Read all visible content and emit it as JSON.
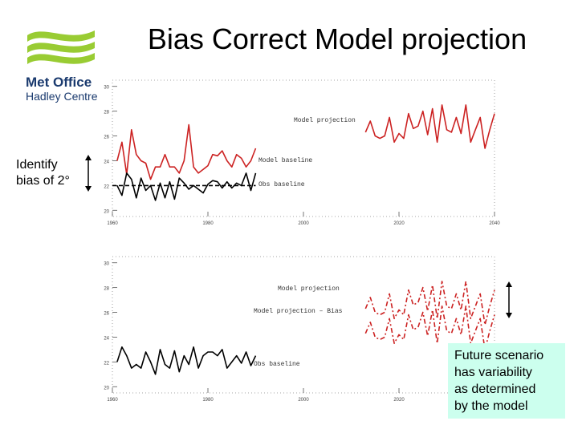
{
  "title": "Bias Correct Model projection",
  "logo": {
    "line1": "Met Office",
    "line2": "Hadley Centre",
    "color": "#99cc33",
    "text_color": "#1a3a6e"
  },
  "bias_note": {
    "line1": "Identify",
    "line2": "bias of 2°"
  },
  "future_note": {
    "lines": [
      "Future scenario",
      "has variability",
      "as determined",
      "by the model"
    ],
    "bg": "#ccffee"
  },
  "chart_data": [
    {
      "type": "line",
      "xlim": [
        1960,
        2040
      ],
      "ylim": [
        19.5,
        30.5
      ],
      "x_ticks": [
        1960,
        1980,
        2000,
        2020,
        2040
      ],
      "y_ticks": [
        20,
        22,
        24,
        26,
        28,
        30
      ],
      "annotations": [
        "Model projection",
        "Model baseline",
        "Obs baseline"
      ],
      "series": [
        {
          "color": "#cc2222",
          "style": "solid",
          "x": [
            1961,
            1962,
            1963,
            1964,
            1965,
            1966,
            1967,
            1968,
            1969,
            1970,
            1971,
            1972,
            1973,
            1974,
            1975,
            1976,
            1977,
            1978,
            1979,
            1980,
            1981,
            1982,
            1983,
            1984,
            1985,
            1986,
            1987,
            1988,
            1989,
            1990
          ],
          "y": [
            24.0,
            25.5,
            22.9,
            26.5,
            24.5,
            24.0,
            23.8,
            22.5,
            23.5,
            23.5,
            24.5,
            23.5,
            23.5,
            23.0,
            24.0,
            26.9,
            23.5,
            23.0,
            23.3,
            23.6,
            24.5,
            24.4,
            24.8,
            24.0,
            23.5,
            24.5,
            24.2,
            23.5,
            24.0,
            25.0
          ]
        },
        {
          "color": "#cc2222",
          "style": "solid",
          "x": [
            2013,
            2014,
            2015,
            2016,
            2017,
            2018,
            2019,
            2020,
            2021,
            2022,
            2023,
            2024,
            2025,
            2026,
            2027,
            2028,
            2029,
            2030,
            2031,
            2032,
            2033,
            2034,
            2035,
            2036,
            2037,
            2038,
            2039,
            2040
          ],
          "y": [
            26.3,
            27.2,
            26.0,
            25.8,
            26.0,
            27.5,
            25.5,
            26.2,
            25.8,
            27.8,
            26.6,
            26.8,
            28.0,
            26.1,
            28.2,
            25.5,
            28.5,
            26.5,
            26.3,
            27.5,
            26.2,
            28.5,
            25.5,
            26.5,
            27.5,
            25.0,
            26.5,
            27.8
          ]
        },
        {
          "color": "#000000",
          "style": "solid",
          "x": [
            1961,
            1962,
            1963,
            1964,
            1965,
            1966,
            1967,
            1968,
            1969,
            1970,
            1971,
            1972,
            1973,
            1974,
            1975,
            1976,
            1977,
            1978,
            1979,
            1980,
            1981,
            1982,
            1983,
            1984,
            1985,
            1986,
            1987,
            1988,
            1989,
            1990
          ],
          "y": [
            22.0,
            21.2,
            23.0,
            22.5,
            21.0,
            22.6,
            21.6,
            22.0,
            20.8,
            22.2,
            21.0,
            22.3,
            20.9,
            22.6,
            22.2,
            21.7,
            22.0,
            21.7,
            21.4,
            22.1,
            22.4,
            22.3,
            21.8,
            22.3,
            21.8,
            22.2,
            22.0,
            23.0,
            21.6,
            23.0
          ]
        },
        {
          "color": "#000000",
          "style": "dashed",
          "x": [
            1960,
            1990
          ],
          "y": [
            22.0,
            22.0
          ]
        }
      ]
    },
    {
      "type": "line",
      "xlim": [
        1960,
        2040
      ],
      "ylim": [
        19.5,
        30.5
      ],
      "x_ticks": [
        1960,
        1980,
        2000,
        2020,
        2040
      ],
      "y_ticks": [
        20,
        22,
        24,
        26,
        28,
        30
      ],
      "annotations": [
        "Model projection",
        "Model projection – Bias",
        "Obs baseline"
      ],
      "series": [
        {
          "color": "#000000",
          "style": "solid",
          "x": [
            1961,
            1962,
            1963,
            1964,
            1965,
            1966,
            1967,
            1968,
            1969,
            1970,
            1971,
            1972,
            1973,
            1974,
            1975,
            1976,
            1977,
            1978,
            1979,
            1980,
            1981,
            1982,
            1983,
            1984,
            1985,
            1986,
            1987,
            1988,
            1989,
            1990
          ],
          "y": [
            22.0,
            23.2,
            22.5,
            21.5,
            21.8,
            21.5,
            22.8,
            22.0,
            21.0,
            23.0,
            21.8,
            21.5,
            22.9,
            21.2,
            22.5,
            21.8,
            23.2,
            21.5,
            22.5,
            22.8,
            22.8,
            22.5,
            23.0,
            21.5,
            22.0,
            22.5,
            21.9,
            22.8,
            21.7,
            22.5
          ]
        },
        {
          "color": "#cc2222",
          "style": "dashdot",
          "x": [
            2013,
            2014,
            2015,
            2016,
            2017,
            2018,
            2019,
            2020,
            2021,
            2022,
            2023,
            2024,
            2025,
            2026,
            2027,
            2028,
            2029,
            2030,
            2031,
            2032,
            2033,
            2034,
            2035,
            2036,
            2037,
            2038,
            2039,
            2040
          ],
          "y": [
            26.3,
            27.2,
            26.0,
            25.8,
            26.0,
            27.5,
            25.5,
            26.2,
            25.8,
            27.8,
            26.6,
            26.8,
            28.0,
            26.1,
            28.2,
            25.5,
            28.5,
            26.5,
            26.3,
            27.5,
            26.2,
            28.5,
            25.5,
            26.5,
            27.5,
            25.0,
            26.5,
            27.8
          ]
        },
        {
          "color": "#cc2222",
          "style": "dashdot",
          "x": [
            2013,
            2014,
            2015,
            2016,
            2017,
            2018,
            2019,
            2020,
            2021,
            2022,
            2023,
            2024,
            2025,
            2026,
            2027,
            2028,
            2029,
            2030,
            2031,
            2032,
            2033,
            2034,
            2035,
            2036,
            2037,
            2038,
            2039,
            2040
          ],
          "y": [
            24.3,
            25.2,
            24.0,
            23.8,
            24.0,
            25.5,
            23.5,
            24.2,
            23.8,
            25.8,
            24.6,
            24.8,
            26.0,
            24.1,
            26.2,
            23.5,
            26.5,
            24.5,
            24.3,
            25.5,
            24.2,
            26.5,
            23.5,
            24.5,
            25.5,
            23.0,
            24.5,
            25.8
          ]
        }
      ]
    }
  ]
}
